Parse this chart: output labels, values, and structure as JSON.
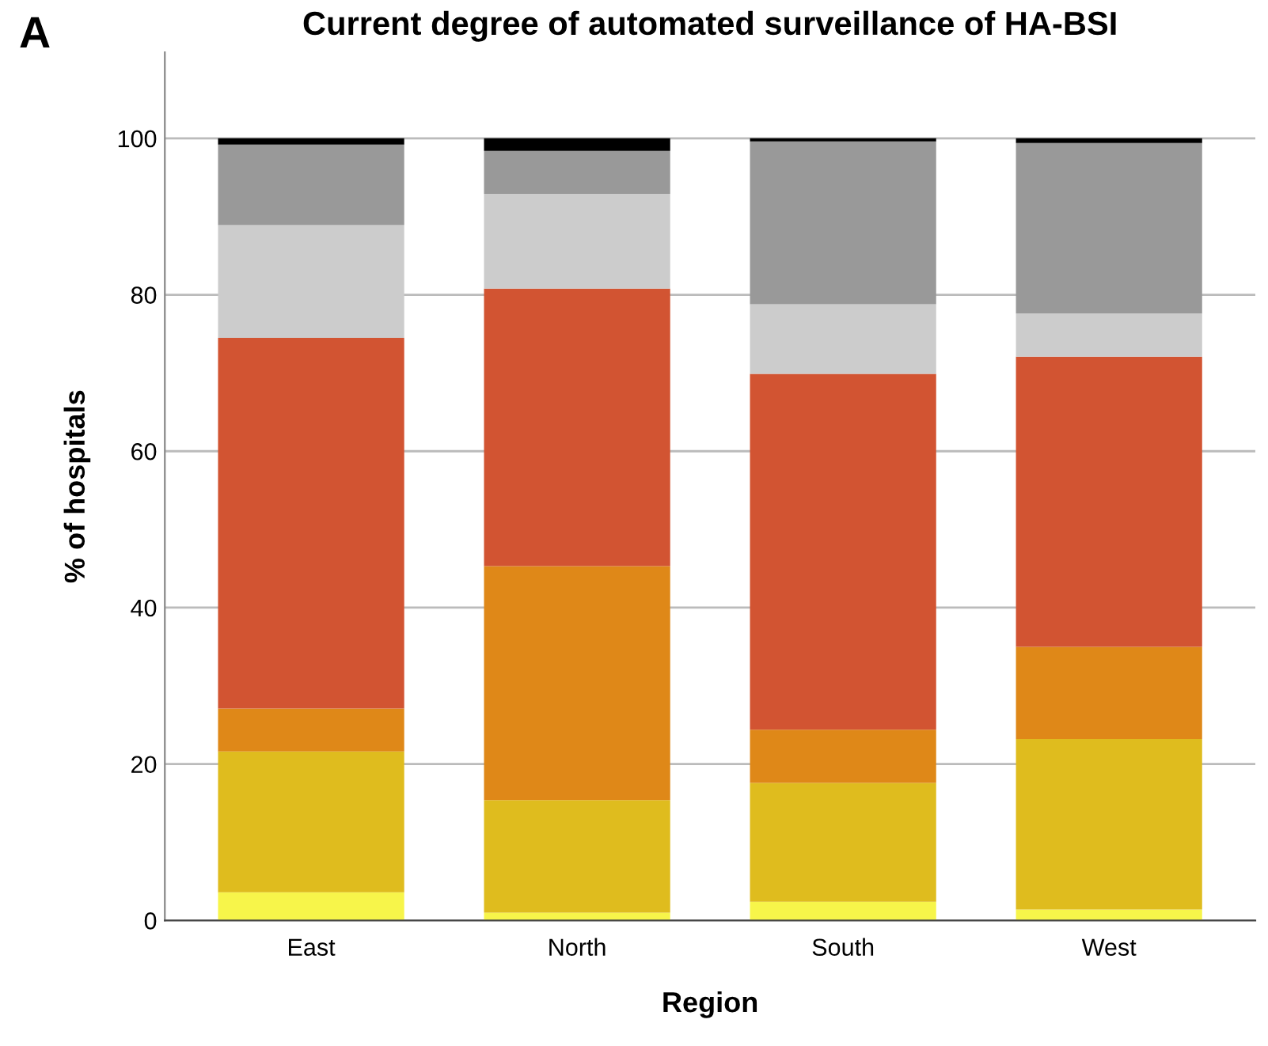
{
  "chart_data": {
    "type": "bar",
    "stacked": true,
    "title": "Current degree of automated surveillance of HA-BSI",
    "xlabel": "Region",
    "ylabel": "% of hospitals",
    "annotations": [
      "A"
    ],
    "categories": [
      "East",
      "North",
      "South",
      "West"
    ],
    "series": [
      {
        "color": "#f7f54a",
        "values": [
          3.6,
          1.0,
          2.4,
          1.4
        ]
      },
      {
        "color": "#dfbc1e",
        "values": [
          18.0,
          14.4,
          15.2,
          21.8
        ]
      },
      {
        "color": "#df8818",
        "values": [
          5.5,
          29.9,
          6.8,
          11.8
        ]
      },
      {
        "color": "#d25432",
        "values": [
          47.4,
          35.5,
          45.5,
          37.1
        ]
      },
      {
        "color": "#cccccc",
        "values": [
          14.4,
          12.1,
          8.9,
          5.5
        ]
      },
      {
        "color": "#999999",
        "values": [
          10.3,
          5.5,
          20.8,
          21.8
        ]
      },
      {
        "color": "#000000",
        "values": [
          0.8,
          1.6,
          0.4,
          0.6
        ]
      }
    ],
    "ylim": [
      0,
      111
    ],
    "yticks": [
      0,
      20,
      40,
      60,
      80,
      100
    ],
    "grid": "y",
    "legend": false
  }
}
